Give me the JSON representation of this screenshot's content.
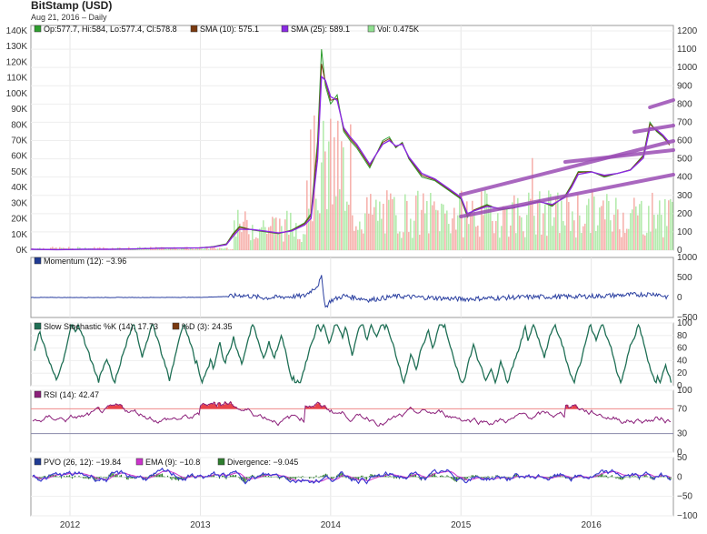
{
  "chart": {
    "title": "BitStamp (USD)",
    "subtitle": "Aug 21, 2016 – Daily",
    "x_ticks": [
      "2012",
      "2013",
      "2014",
      "2015",
      "2016"
    ]
  },
  "chart_data": [
    {
      "type": "line",
      "panel": "price",
      "legend": [
        {
          "label": "Op:577.7, Hi:584, Lo:577.4, Cl:578.8",
          "color": "#2e9e2e"
        },
        {
          "label": "SMA (10): 575.1",
          "color": "#7a3a10"
        },
        {
          "label": "SMA (25): 589.1",
          "color": "#8a2be2"
        },
        {
          "label": "Vol: 0.475K",
          "color": "#90e090"
        }
      ],
      "y_left_ticks": [
        "0K",
        "10K",
        "20K",
        "30K",
        "40K",
        "50K",
        "60K",
        "70K",
        "80K",
        "90K",
        "100K",
        "110K",
        "120K",
        "130K",
        "140K"
      ],
      "y_right_ticks": [
        "0",
        "100",
        "200",
        "300",
        "400",
        "500",
        "600",
        "700",
        "800",
        "900",
        "1000",
        "1100",
        "1200"
      ],
      "ylim": [
        0,
        1200
      ],
      "volume_ylim": [
        0,
        140000
      ],
      "x": [
        2011.7,
        2011.9,
        2012.1,
        2012.3,
        2012.5,
        2012.7,
        2012.9,
        2013.0,
        2013.1,
        2013.2,
        2013.25,
        2013.3,
        2013.4,
        2013.5,
        2013.6,
        2013.7,
        2013.8,
        2013.85,
        2013.9,
        2013.93,
        2013.96,
        2014.0,
        2014.05,
        2014.1,
        2014.15,
        2014.2,
        2014.3,
        2014.4,
        2014.45,
        2014.5,
        2014.55,
        2014.6,
        2014.7,
        2014.8,
        2014.9,
        2015.0,
        2015.05,
        2015.1,
        2015.2,
        2015.3,
        2015.4,
        2015.5,
        2015.6,
        2015.7,
        2015.8,
        2015.85,
        2015.9,
        2016.0,
        2016.1,
        2016.2,
        2016.3,
        2016.4,
        2016.45,
        2016.5,
        2016.55,
        2016.6
      ],
      "series": [
        {
          "name": "Close",
          "values": [
            5,
            3,
            5,
            5,
            7,
            11,
            12,
            13,
            20,
            35,
            90,
            130,
            110,
            100,
            90,
            110,
            150,
            200,
            600,
            1100,
            900,
            800,
            850,
            650,
            600,
            560,
            450,
            600,
            620,
            560,
            590,
            500,
            400,
            380,
            330,
            280,
            180,
            220,
            250,
            220,
            230,
            250,
            270,
            240,
            300,
            360,
            430,
            430,
            400,
            420,
            440,
            520,
            700,
            650,
            620,
            578
          ]
        },
        {
          "name": "SMA (10): 575.1",
          "values": [
            5,
            3,
            5,
            5,
            7,
            11,
            12,
            13,
            19,
            33,
            85,
            125,
            112,
            102,
            92,
            108,
            145,
            190,
            560,
            1020,
            920,
            820,
            830,
            660,
            610,
            570,
            460,
            590,
            610,
            565,
            585,
            505,
            410,
            385,
            335,
            285,
            190,
            220,
            245,
            225,
            230,
            248,
            268,
            245,
            295,
            355,
            425,
            430,
            405,
            420,
            440,
            515,
            690,
            655,
            625,
            575
          ]
        },
        {
          "name": "SMA (25): 589.1",
          "values": [
            5,
            3,
            5,
            5,
            7,
            11,
            12,
            13,
            18,
            30,
            75,
            115,
            113,
            104,
            94,
            105,
            138,
            175,
            500,
            950,
            930,
            840,
            820,
            670,
            620,
            580,
            470,
            580,
            600,
            570,
            580,
            510,
            420,
            390,
            340,
            290,
            200,
            215,
            240,
            228,
            232,
            246,
            265,
            250,
            290,
            345,
            415,
            428,
            410,
            420,
            438,
            505,
            670,
            660,
            630,
            589
          ]
        }
      ],
      "annotations": "five hand-drawn purple trend lines"
    },
    {
      "type": "line",
      "panel": "momentum",
      "legend": [
        {
          "label": "Momentum (12): −3.96",
          "color": "#1f3a93"
        }
      ],
      "y_ticks": [
        "1000",
        "500",
        "0",
        "−500"
      ],
      "ylim": [
        -500,
        1000
      ],
      "x": [
        2011.7,
        2012.5,
        2013.0,
        2013.25,
        2013.3,
        2013.5,
        2013.8,
        2013.9,
        2013.93,
        2013.96,
        2014.0,
        2014.1,
        2014.3,
        2014.5,
        2015.0,
        2015.5,
        2016.0,
        2016.5,
        2016.6
      ],
      "series": [
        {
          "name": "Momentum (12): −3.96",
          "values": [
            0,
            0,
            3,
            30,
            60,
            -10,
            40,
            300,
            500,
            -250,
            -80,
            40,
            -60,
            30,
            -40,
            10,
            30,
            90,
            -4
          ]
        }
      ]
    },
    {
      "type": "line",
      "panel": "stochastic",
      "legend": [
        {
          "label": "Slow Stochastic %K (14): 17.73",
          "color": "#1f6f55"
        },
        {
          "label": "%D (3): 24.35",
          "color": "#7a3a10"
        }
      ],
      "y_ticks": [
        "100",
        "80",
        "60",
        "40",
        "20",
        "0"
      ],
      "ylim": [
        0,
        100
      ]
    },
    {
      "type": "line",
      "panel": "rsi",
      "legend": [
        {
          "label": "RSI (14): 42.47",
          "color": "#8b1f7a"
        }
      ],
      "y_ticks": [
        "100",
        "70",
        "30",
        "0"
      ],
      "ylim": [
        0,
        100
      ]
    },
    {
      "type": "line",
      "panel": "pvo",
      "legend": [
        {
          "label": "PVO (26, 12): −19.84",
          "color": "#1f3a93"
        },
        {
          "label": "EMA (9): −10.8",
          "color": "#cc33cc"
        },
        {
          "label": "Divergence: −9.045",
          "color": "#2e7d2e"
        }
      ],
      "y_ticks": [
        "50",
        "0",
        "−50",
        "−100"
      ],
      "ylim": [
        -100,
        50
      ]
    }
  ]
}
